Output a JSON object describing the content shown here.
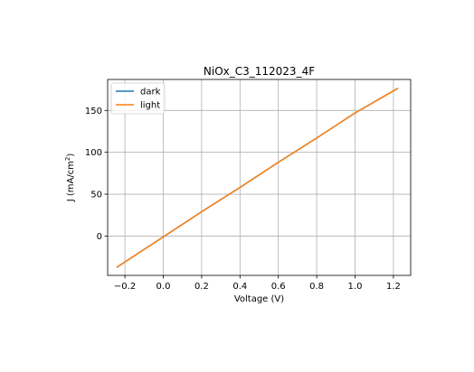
{
  "chart_data": {
    "type": "line",
    "title": "NiOx_C3_112023_4F",
    "xlabel": "Voltage (V)",
    "ylabel_main": "J (mA/cm",
    "ylabel_sup": "2",
    "ylabel_close": ")",
    "xlim": [
      -0.29,
      1.29
    ],
    "ylim": [
      -47,
      187
    ],
    "xticks": [
      -0.2,
      0.0,
      0.2,
      0.4,
      0.6,
      0.8,
      1.0,
      1.2
    ],
    "xtick_labels": [
      "−0.2",
      "0.0",
      "0.2",
      "0.4",
      "0.6",
      "0.8",
      "1.0",
      "1.2"
    ],
    "yticks": [
      0,
      50,
      100,
      150
    ],
    "ytick_labels": [
      "0",
      "50",
      "100",
      "150"
    ],
    "grid": true,
    "legend_position": "top-left",
    "series": [
      {
        "name": "dark",
        "color": "#1f77b4",
        "x": [
          -0.24,
          0.0,
          0.2,
          0.4,
          0.6,
          0.8,
          1.0,
          1.22
        ],
        "y": [
          -37,
          -1,
          29,
          58,
          88,
          117,
          147,
          176
        ]
      },
      {
        "name": "light",
        "color": "#ff7f0e",
        "x": [
          -0.24,
          0.0,
          0.2,
          0.4,
          0.6,
          0.8,
          1.0,
          1.22
        ],
        "y": [
          -37,
          -1,
          29,
          58,
          88,
          117,
          147,
          176
        ]
      }
    ]
  }
}
